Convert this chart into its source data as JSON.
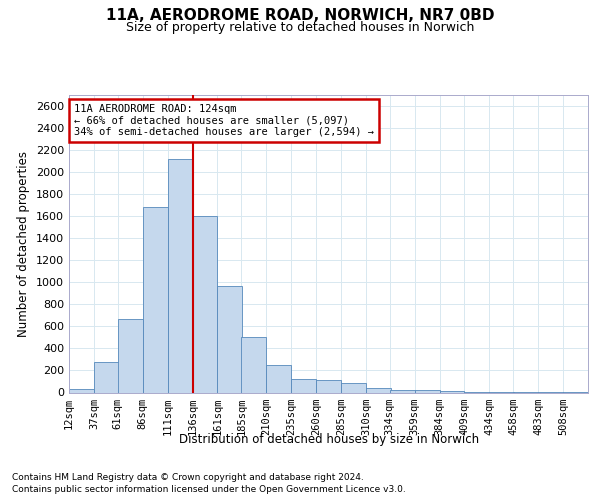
{
  "title_line1": "11A, AERODROME ROAD, NORWICH, NR7 0BD",
  "title_line2": "Size of property relative to detached houses in Norwich",
  "xlabel": "Distribution of detached houses by size in Norwich",
  "ylabel": "Number of detached properties",
  "footer_line1": "Contains HM Land Registry data © Crown copyright and database right 2024.",
  "footer_line2": "Contains public sector information licensed under the Open Government Licence v3.0.",
  "annotation_line1": "11A AERODROME ROAD: 124sqm",
  "annotation_line2": "← 66% of detached houses are smaller (5,097)",
  "annotation_line3": "34% of semi-detached houses are larger (2,594) →",
  "property_size": 124,
  "bar_color": "#c5d8ed",
  "bar_edge_color": "#5588bb",
  "redline_color": "#cc0000",
  "grid_color": "#d8e8f0",
  "categories": [
    "12sqm",
    "37sqm",
    "61sqm",
    "86sqm",
    "111sqm",
    "136sqm",
    "161sqm",
    "185sqm",
    "210sqm",
    "235sqm",
    "260sqm",
    "285sqm",
    "310sqm",
    "334sqm",
    "359sqm",
    "384sqm",
    "409sqm",
    "434sqm",
    "458sqm",
    "483sqm",
    "508sqm"
  ],
  "bin_starts": [
    12,
    37,
    61,
    86,
    111,
    136,
    161,
    185,
    210,
    235,
    260,
    285,
    310,
    334,
    359,
    384,
    409,
    434,
    458,
    483,
    508
  ],
  "bin_width": 25,
  "values": [
    30,
    280,
    670,
    1680,
    2120,
    1600,
    970,
    500,
    250,
    120,
    115,
    90,
    45,
    25,
    20,
    15,
    8,
    5,
    5,
    8,
    5
  ],
  "ylim": [
    0,
    2700
  ],
  "yticks": [
    0,
    200,
    400,
    600,
    800,
    1000,
    1200,
    1400,
    1600,
    1800,
    2000,
    2200,
    2400,
    2600
  ],
  "redline_x": 136,
  "annotation_box_color": "#ffffff",
  "annotation_box_edge": "#cc0000"
}
